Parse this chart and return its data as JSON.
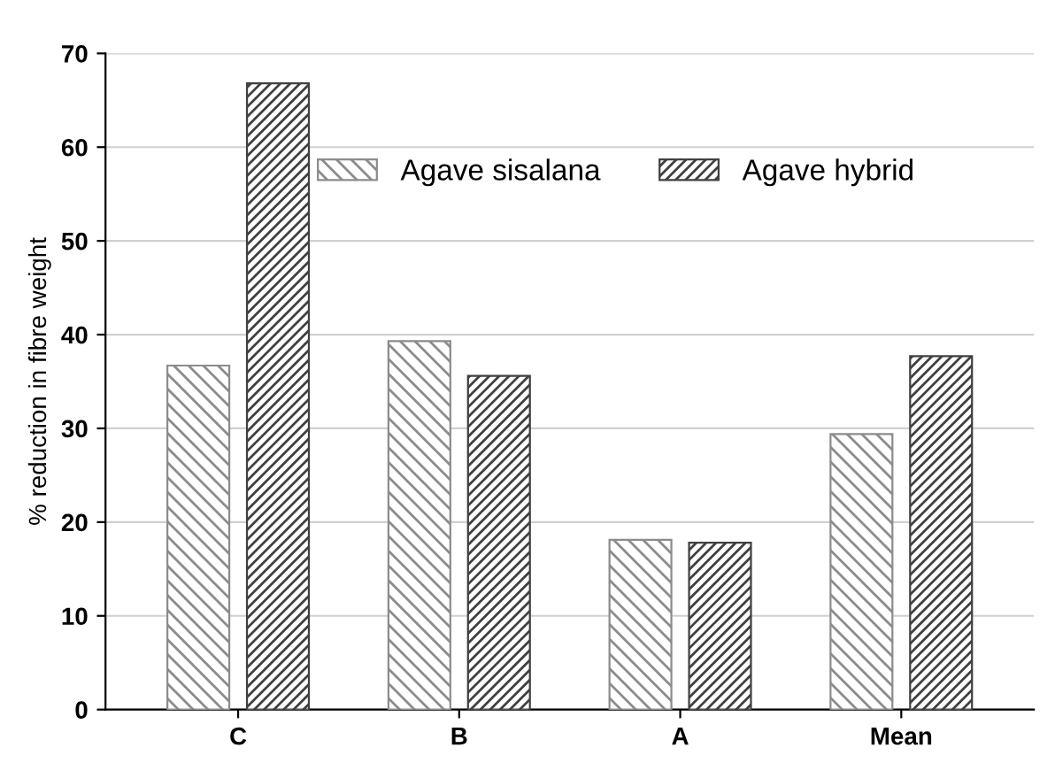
{
  "chart_data": {
    "type": "bar",
    "ylabel": "% reduction in fibre weight",
    "categories": [
      "C",
      "B",
      "A",
      "Mean"
    ],
    "series": [
      {
        "name": "Agave sisalana",
        "color": "#8c8c8c",
        "values": [
          36.7,
          39.3,
          18.1,
          29.4
        ]
      },
      {
        "name": "Agave hybrid",
        "color": "#404040",
        "values": [
          66.8,
          35.6,
          17.8,
          37.7
        ]
      }
    ],
    "ylim": [
      0,
      70
    ],
    "yticks": [
      0,
      10,
      20,
      30,
      40,
      50,
      60,
      70
    ],
    "grid": "y",
    "legend": "top"
  }
}
